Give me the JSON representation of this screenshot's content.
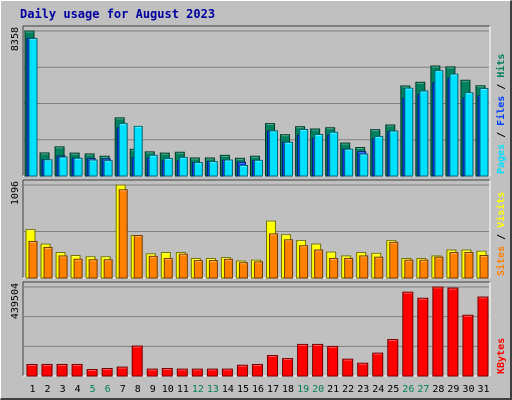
{
  "title": "Daily usage for August 2023",
  "colors": {
    "hits": "#00805C",
    "files": "#0040FF",
    "pages": "#00E0FF",
    "visits": "#FFFF00",
    "sites": "#FF8000",
    "kbytes": "#FF0000",
    "weekend": "#00805C",
    "weekday": "#000000",
    "slash": "#000000"
  },
  "chart_data": [
    {
      "type": "bar",
      "name": "hits-files-pages",
      "categories": [
        "1",
        "2",
        "3",
        "4",
        "5",
        "6",
        "7",
        "8",
        "9",
        "10",
        "11",
        "12",
        "13",
        "14",
        "15",
        "16",
        "17",
        "18",
        "19",
        "20",
        "21",
        "22",
        "23",
        "24",
        "25",
        "26",
        "27",
        "28",
        "29",
        "30",
        "31"
      ],
      "ymax_label": "8358",
      "ylim": [
        0,
        8358
      ],
      "legend": [
        {
          "key": "pages",
          "label": "Pages"
        },
        {
          "key": "slash",
          "label": " / "
        },
        {
          "key": "files",
          "label": "Files"
        },
        {
          "key": "slash",
          "label": " / "
        },
        {
          "key": "hits",
          "label": "Hits"
        }
      ],
      "series": [
        {
          "key": "hits",
          "values": [
            8358,
            1330,
            1680,
            1320,
            1270,
            1140,
            3350,
            1540,
            1390,
            1320,
            1370,
            1040,
            1040,
            1190,
            1020,
            1140,
            3020,
            2380,
            2840,
            2710,
            2780,
            1900,
            1640,
            2670,
            2940,
            5190,
            5400,
            6340,
            6290,
            5520,
            5200
          ]
        },
        {
          "key": "files",
          "values": [
            7940,
            930,
            1150,
            1030,
            1000,
            980,
            2780,
            1050,
            1030,
            890,
            880,
            760,
            830,
            910,
            790,
            900,
            2600,
            1940,
            2350,
            2180,
            2360,
            1550,
            1400,
            2140,
            2560,
            4490,
            4700,
            5380,
            5630,
            4490,
            4620
          ]
        },
        {
          "key": "pages",
          "values": [
            7920,
            930,
            1090,
            1020,
            920,
            880,
            3020,
            2860,
            1190,
            1010,
            1070,
            770,
            830,
            920,
            610,
            900,
            2600,
            1940,
            2680,
            2390,
            2520,
            1540,
            1260,
            2280,
            2590,
            5060,
            4900,
            6070,
            5870,
            4800,
            5040
          ]
        }
      ]
    },
    {
      "type": "bar",
      "name": "visits-sites",
      "categories": [
        "1",
        "2",
        "3",
        "4",
        "5",
        "6",
        "7",
        "8",
        "9",
        "10",
        "11",
        "12",
        "13",
        "14",
        "15",
        "16",
        "17",
        "18",
        "19",
        "20",
        "21",
        "22",
        "23",
        "24",
        "25",
        "26",
        "27",
        "28",
        "29",
        "30",
        "31"
      ],
      "ymax_label": "1096",
      "ylim": [
        0,
        1096
      ],
      "legend": [
        {
          "key": "sites",
          "label": "Sites"
        },
        {
          "key": "slash",
          "label": " / "
        },
        {
          "key": "visits",
          "label": "Visits"
        }
      ],
      "series": [
        {
          "key": "visits",
          "values": [
            570,
            400,
            300,
            265,
            250,
            250,
            1096,
            500,
            285,
            300,
            300,
            230,
            230,
            240,
            200,
            210,
            670,
            510,
            440,
            400,
            305,
            260,
            300,
            290,
            440,
            230,
            230,
            260,
            330,
            330,
            315
          ]
        },
        {
          "key": "sites",
          "values": [
            430,
            360,
            260,
            220,
            215,
            215,
            1040,
            500,
            255,
            230,
            280,
            205,
            205,
            220,
            180,
            190,
            520,
            450,
            380,
            330,
            230,
            230,
            260,
            245,
            420,
            210,
            210,
            245,
            300,
            300,
            265
          ]
        }
      ]
    },
    {
      "type": "bar",
      "name": "kbytes",
      "categories": [
        "1",
        "2",
        "3",
        "4",
        "5",
        "6",
        "7",
        "8",
        "9",
        "10",
        "11",
        "12",
        "13",
        "14",
        "15",
        "16",
        "17",
        "18",
        "19",
        "20",
        "21",
        "22",
        "23",
        "24",
        "25",
        "26",
        "27",
        "28",
        "29",
        "30",
        "31"
      ],
      "ymax_label": "439504",
      "ylim": [
        0,
        439504
      ],
      "legend": [
        {
          "key": "kbytes",
          "label": "KBytes"
        }
      ],
      "series": [
        {
          "key": "kbytes",
          "values": [
            57000,
            57000,
            57000,
            57000,
            32000,
            37000,
            44000,
            148000,
            34000,
            37000,
            34000,
            34000,
            34000,
            34000,
            53000,
            57000,
            101000,
            86000,
            156000,
            156000,
            146000,
            83000,
            63000,
            113000,
            180000,
            414000,
            384000,
            439504,
            434000,
            300000,
            390000
          ]
        }
      ]
    }
  ],
  "weekend_days": [
    "5",
    "6",
    "12",
    "13",
    "19",
    "20",
    "26",
    "27"
  ]
}
